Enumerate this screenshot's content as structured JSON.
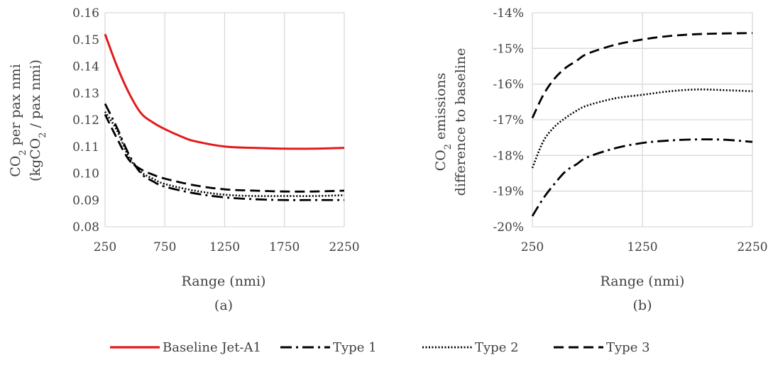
{
  "chart_data": [
    {
      "id": "a",
      "type": "line",
      "panel_label": "(a)",
      "xlabel": "Range (nmi)",
      "ylabel_line1": "CO2 per pax nmi",
      "ylabel_line2": "(kgCO2 / pax nmi)",
      "xlim": [
        250,
        2250
      ],
      "ylim": [
        0.08,
        0.16
      ],
      "x_ticks": [
        250,
        750,
        1250,
        1750,
        2250
      ],
      "x_tick_labels": [
        "250",
        "750",
        "1250",
        "1750",
        "2250"
      ],
      "y_ticks": [
        0.08,
        0.09,
        0.1,
        0.11,
        0.12,
        0.13,
        0.14,
        0.15,
        0.16
      ],
      "y_tick_labels": [
        "0.08",
        "0.09",
        "0.10",
        "0.11",
        "0.12",
        "0.13",
        "0.14",
        "0.15",
        "0.16"
      ],
      "grid": "vertical",
      "series": [
        {
          "name": "Baseline Jet-A1",
          "style": "solid",
          "color": "#e31a1c",
          "x": [
            250,
            350,
            450,
            550,
            650,
            750,
            900,
            1000,
            1250,
            1500,
            1750,
            2000,
            2250
          ],
          "y": [
            0.152,
            0.14,
            0.13,
            0.1225,
            0.119,
            0.1165,
            0.1135,
            0.112,
            0.11,
            0.1095,
            0.1092,
            0.1092,
            0.1095
          ]
        },
        {
          "name": "Type 1",
          "style": "dashdot",
          "color": "#000000",
          "x": [
            250,
            350,
            450,
            550,
            650,
            750,
            1000,
            1250,
            1500,
            1750,
            2000,
            2250
          ],
          "y": [
            0.126,
            0.117,
            0.107,
            0.1,
            0.097,
            0.095,
            0.0925,
            0.091,
            0.0903,
            0.09,
            0.09,
            0.09
          ]
        },
        {
          "name": "Type 2",
          "style": "dotted",
          "color": "#000000",
          "x": [
            250,
            350,
            450,
            550,
            650,
            750,
            1000,
            1250,
            1500,
            1750,
            2000,
            2250
          ],
          "y": [
            0.123,
            0.116,
            0.106,
            0.1005,
            0.098,
            0.096,
            0.0935,
            0.092,
            0.0915,
            0.0915,
            0.0915,
            0.0918
          ]
        },
        {
          "name": "Type 3",
          "style": "dashed",
          "color": "#000000",
          "x": [
            250,
            350,
            450,
            550,
            650,
            750,
            1000,
            1250,
            1500,
            1750,
            2000,
            2250
          ],
          "y": [
            0.122,
            0.113,
            0.105,
            0.1015,
            0.0995,
            0.098,
            0.0955,
            0.094,
            0.0935,
            0.0932,
            0.0932,
            0.0935
          ]
        }
      ]
    },
    {
      "id": "b",
      "type": "line",
      "panel_label": "(b)",
      "xlabel": "Range (nmi)",
      "ylabel_line1": "CO2 emissions",
      "ylabel_line2": "difference to baseline",
      "xlim": [
        250,
        2250
      ],
      "ylim": [
        -20,
        -14
      ],
      "y_unit": "%",
      "x_ticks": [
        250,
        1250,
        2250
      ],
      "x_tick_labels": [
        "250",
        "1250",
        "2250"
      ],
      "y_ticks": [
        -20,
        -19,
        -18,
        -17,
        -16,
        -15,
        -14
      ],
      "y_tick_labels": [
        "-20%",
        "-19%",
        "-18%",
        "-17%",
        "-16%",
        "-15%",
        "-14%"
      ],
      "grid": "both",
      "series": [
        {
          "name": "Type 1",
          "style": "dashdot",
          "color": "#000000",
          "x": [
            250,
            350,
            450,
            550,
            650,
            750,
            1000,
            1250,
            1500,
            1750,
            2000,
            2250
          ],
          "y": [
            -19.7,
            -19.2,
            -18.8,
            -18.45,
            -18.25,
            -18.05,
            -17.8,
            -17.65,
            -17.58,
            -17.55,
            -17.56,
            -17.62
          ]
        },
        {
          "name": "Type 2",
          "style": "dotted",
          "color": "#000000",
          "x": [
            250,
            350,
            450,
            550,
            650,
            750,
            1000,
            1250,
            1500,
            1750,
            2000,
            2250
          ],
          "y": [
            -18.35,
            -17.6,
            -17.2,
            -16.95,
            -16.75,
            -16.6,
            -16.4,
            -16.3,
            -16.2,
            -16.15,
            -16.17,
            -16.2
          ]
        },
        {
          "name": "Type 3",
          "style": "dashed",
          "color": "#000000",
          "x": [
            250,
            350,
            450,
            550,
            650,
            750,
            1000,
            1250,
            1500,
            1750,
            2000,
            2250
          ],
          "y": [
            -16.95,
            -16.3,
            -15.85,
            -15.55,
            -15.35,
            -15.15,
            -14.9,
            -14.75,
            -14.65,
            -14.6,
            -14.58,
            -14.57
          ]
        }
      ]
    }
  ],
  "legend": [
    {
      "label": "Baseline Jet-A1",
      "style": "solid",
      "color": "#e31a1c"
    },
    {
      "label": "Type 1",
      "style": "dashdot",
      "color": "#000000"
    },
    {
      "label": "Type 2",
      "style": "dotted",
      "color": "#000000"
    },
    {
      "label": "Type 3",
      "style": "dashed",
      "color": "#000000"
    }
  ],
  "colors": {
    "grid": "#d9d9d9",
    "text": "#404040",
    "baseline": "#e31a1c",
    "types": "#000000"
  }
}
